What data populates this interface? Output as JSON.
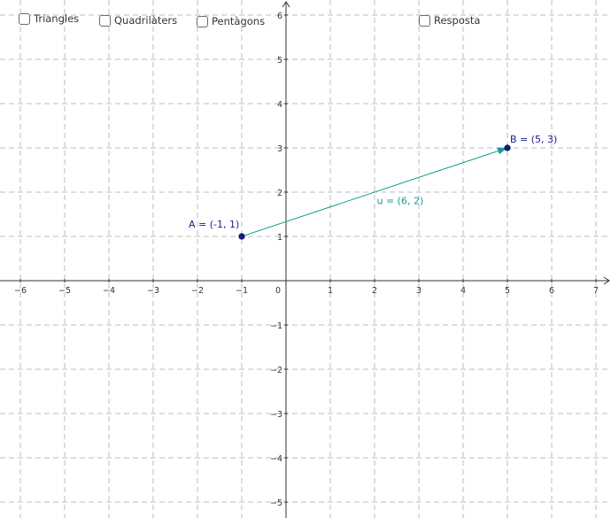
{
  "checkboxes": [
    {
      "label": "Triangles",
      "checked": false
    },
    {
      "label": "Quadrilàters",
      "checked": false
    },
    {
      "label": "Pentàgons",
      "checked": false
    },
    {
      "label": "Resposta",
      "checked": false
    }
  ],
  "graph": {
    "x_range": [
      -6.6,
      7.4
    ],
    "y_range": [
      -5.3,
      6.3
    ],
    "x_ticks": [
      "−6",
      "−5",
      "−4",
      "−3",
      "−2",
      "−1",
      "0",
      "1",
      "2",
      "3",
      "4",
      "5",
      "6",
      "7"
    ],
    "y_ticks": [
      "−5",
      "−4",
      "−3",
      "−2",
      "−1",
      "1",
      "2",
      "3",
      "4",
      "5",
      "6"
    ],
    "grid": true,
    "colors": {
      "point": "#1a1a8c",
      "point_label": "#1a1a8c",
      "vector": "#1a9a9a",
      "grid": "#bcbcbc",
      "axis": "#333333"
    }
  },
  "points": {
    "A": {
      "x": -1,
      "y": 1,
      "label": "A = (-1, 1)"
    },
    "B": {
      "x": 5,
      "y": 3,
      "label": "B = (5, 3)"
    }
  },
  "vector": {
    "from": "A",
    "to": "B",
    "label": "u = (6, 2)"
  }
}
